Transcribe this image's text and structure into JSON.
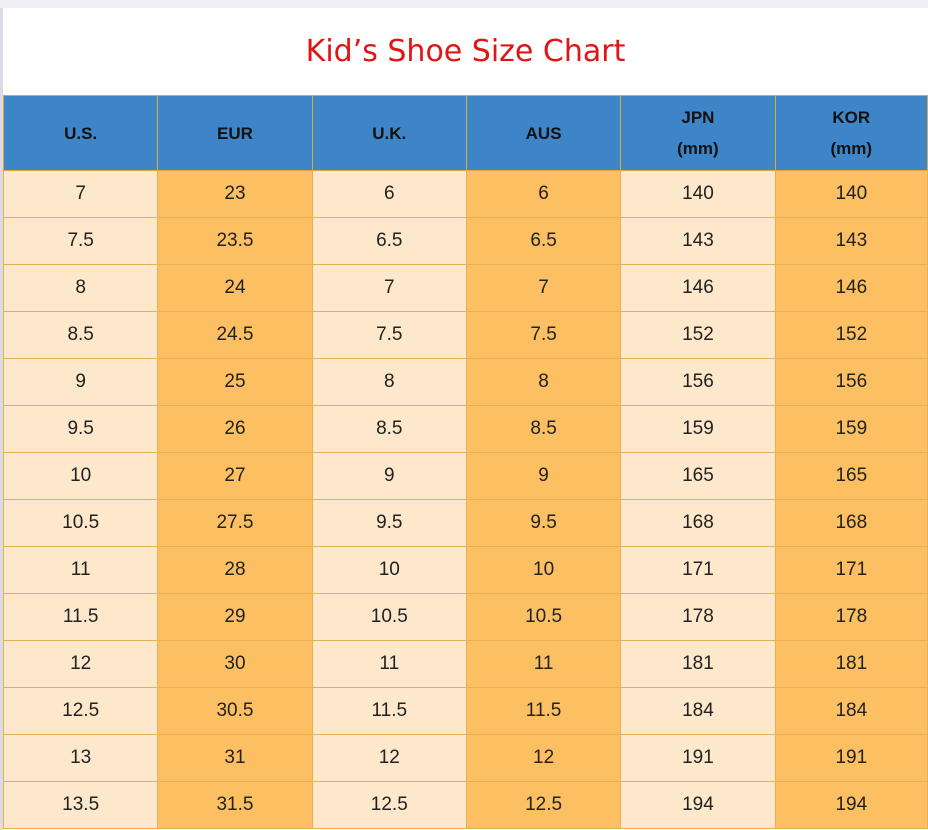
{
  "title": "Kid’s Shoe Size Chart",
  "colors": {
    "title": "#e01515",
    "header_bg": "#3d85c6",
    "cell_light": "#fde8cb",
    "cell_dark": "#fcbf62",
    "grid": "#e6b056"
  },
  "table": {
    "headers": [
      "U.S.",
      "EUR",
      "U.K.",
      "AUS",
      "JPN\n(mm)",
      "KOR\n(mm)"
    ],
    "rows": [
      [
        "7",
        "23",
        "6",
        "6",
        "140",
        "140"
      ],
      [
        "7.5",
        "23.5",
        "6.5",
        "6.5",
        "143",
        "143"
      ],
      [
        "8",
        "24",
        "7",
        "7",
        "146",
        "146"
      ],
      [
        "8.5",
        "24.5",
        "7.5",
        "7.5",
        "152",
        "152"
      ],
      [
        "9",
        "25",
        "8",
        "8",
        "156",
        "156"
      ],
      [
        "9.5",
        "26",
        "8.5",
        "8.5",
        "159",
        "159"
      ],
      [
        "10",
        "27",
        "9",
        "9",
        "165",
        "165"
      ],
      [
        "10.5",
        "27.5",
        "9.5",
        "9.5",
        "168",
        "168"
      ],
      [
        "11",
        "28",
        "10",
        "10",
        "171",
        "171"
      ],
      [
        "11.5",
        "29",
        "10.5",
        "10.5",
        "178",
        "178"
      ],
      [
        "12",
        "30",
        "11",
        "11",
        "181",
        "181"
      ],
      [
        "12.5",
        "30.5",
        "11.5",
        "11.5",
        "184",
        "184"
      ],
      [
        "13",
        "31",
        "12",
        "12",
        "191",
        "191"
      ],
      [
        "13.5",
        "31.5",
        "12.5",
        "12.5",
        "194",
        "194"
      ]
    ]
  }
}
